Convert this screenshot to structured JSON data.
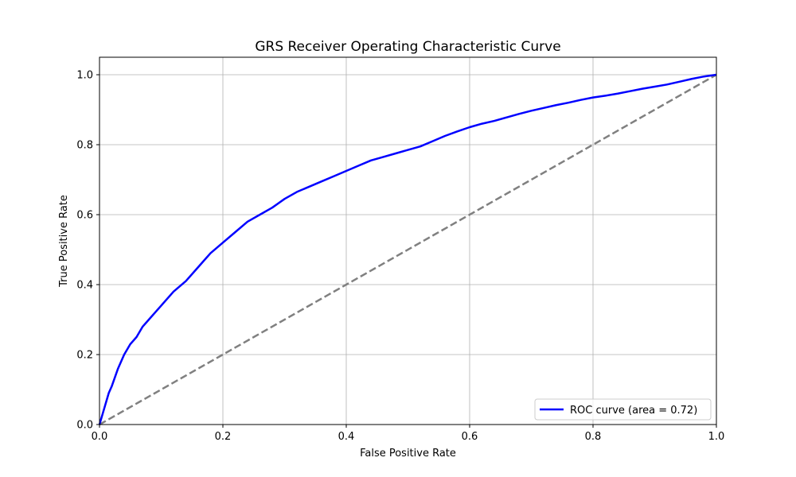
{
  "chart_data": {
    "type": "line",
    "title": "GRS Receiver Operating Characteristic Curve",
    "xlabel": "False Positive Rate",
    "ylabel": "True Positive Rate",
    "xlim": [
      0.0,
      1.0
    ],
    "ylim": [
      0.0,
      1.05
    ],
    "xticks": [
      0.0,
      0.2,
      0.4,
      0.6,
      0.8,
      1.0
    ],
    "yticks": [
      0.0,
      0.2,
      0.4,
      0.6,
      0.8,
      1.0
    ],
    "xtick_labels": [
      "0.0",
      "0.2",
      "0.4",
      "0.6",
      "0.8",
      "1.0"
    ],
    "ytick_labels": [
      "0.0",
      "0.2",
      "0.4",
      "0.6",
      "0.8",
      "1.0"
    ],
    "grid": true,
    "legend_position": "bottom-right",
    "series": [
      {
        "name": "ROC curve (area = 0.72)",
        "color": "#0000ff",
        "style": "solid",
        "x": [
          0.0,
          0.005,
          0.01,
          0.015,
          0.02,
          0.03,
          0.04,
          0.05,
          0.06,
          0.07,
          0.08,
          0.09,
          0.1,
          0.12,
          0.14,
          0.16,
          0.18,
          0.2,
          0.22,
          0.24,
          0.26,
          0.28,
          0.3,
          0.32,
          0.34,
          0.36,
          0.38,
          0.4,
          0.42,
          0.44,
          0.46,
          0.48,
          0.5,
          0.52,
          0.54,
          0.56,
          0.58,
          0.6,
          0.62,
          0.64,
          0.66,
          0.68,
          0.7,
          0.72,
          0.74,
          0.76,
          0.78,
          0.8,
          0.82,
          0.84,
          0.86,
          0.88,
          0.9,
          0.92,
          0.94,
          0.96,
          0.98,
          1.0
        ],
        "y": [
          0.0,
          0.03,
          0.06,
          0.09,
          0.11,
          0.16,
          0.2,
          0.23,
          0.25,
          0.28,
          0.3,
          0.32,
          0.34,
          0.38,
          0.41,
          0.45,
          0.49,
          0.52,
          0.55,
          0.58,
          0.6,
          0.62,
          0.645,
          0.665,
          0.68,
          0.695,
          0.71,
          0.725,
          0.74,
          0.755,
          0.765,
          0.775,
          0.785,
          0.795,
          0.81,
          0.825,
          0.838,
          0.85,
          0.86,
          0.868,
          0.878,
          0.888,
          0.897,
          0.905,
          0.913,
          0.92,
          0.928,
          0.935,
          0.94,
          0.946,
          0.953,
          0.96,
          0.966,
          0.972,
          0.98,
          0.988,
          0.995,
          1.0
        ]
      },
      {
        "name": "",
        "color": "#808080",
        "style": "dashed",
        "x": [
          0.0,
          1.0
        ],
        "y": [
          0.0,
          1.0
        ]
      }
    ]
  }
}
